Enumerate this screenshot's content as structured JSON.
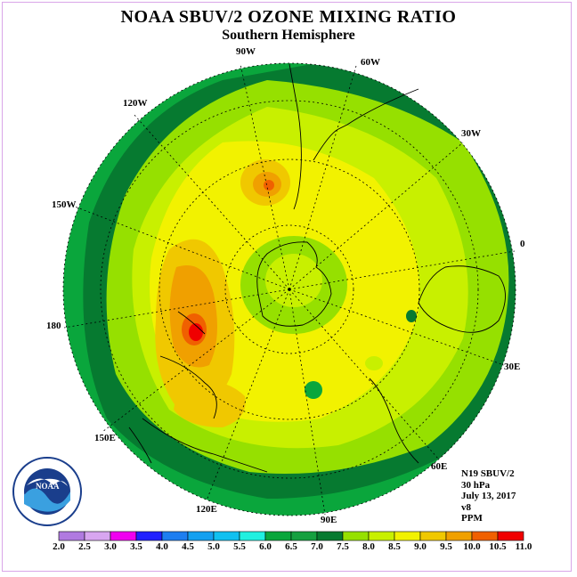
{
  "title": "NOAA SBUV/2 OZONE MIXING RATIO",
  "subtitle": "Southern Hemisphere",
  "longitudes": [
    "90W",
    "60W",
    "30W",
    "0",
    "30E",
    "60E",
    "90E",
    "120E",
    "150E",
    "180",
    "150W",
    "120W"
  ],
  "meta": {
    "instrument": "N19 SBUV/2",
    "level": "30 hPa",
    "date": "July 13, 2017",
    "version": "v8",
    "units": "PPM"
  },
  "colorbar": {
    "labels": [
      "2.0",
      "2.5",
      "3.0",
      "3.5",
      "4.0",
      "4.5",
      "5.0",
      "5.5",
      "6.0",
      "6.5",
      "7.0",
      "7.5",
      "8.0",
      "8.5",
      "9.0",
      "9.5",
      "10.0",
      "10.5",
      "11.0"
    ],
    "colors": [
      "#b07ae0",
      "#d8a6f0",
      "#f000f0",
      "#2020ff",
      "#1e7ef0",
      "#14a0f0",
      "#10c0f0",
      "#20f0e0",
      "#0aa63c",
      "#16a040",
      "#067a30",
      "#96e000",
      "#c8f000",
      "#f2f200",
      "#f0c800",
      "#f0a000",
      "#f06000",
      "#f00000",
      "#8a4a30"
    ]
  },
  "logo": {
    "text": "NOAA"
  }
}
